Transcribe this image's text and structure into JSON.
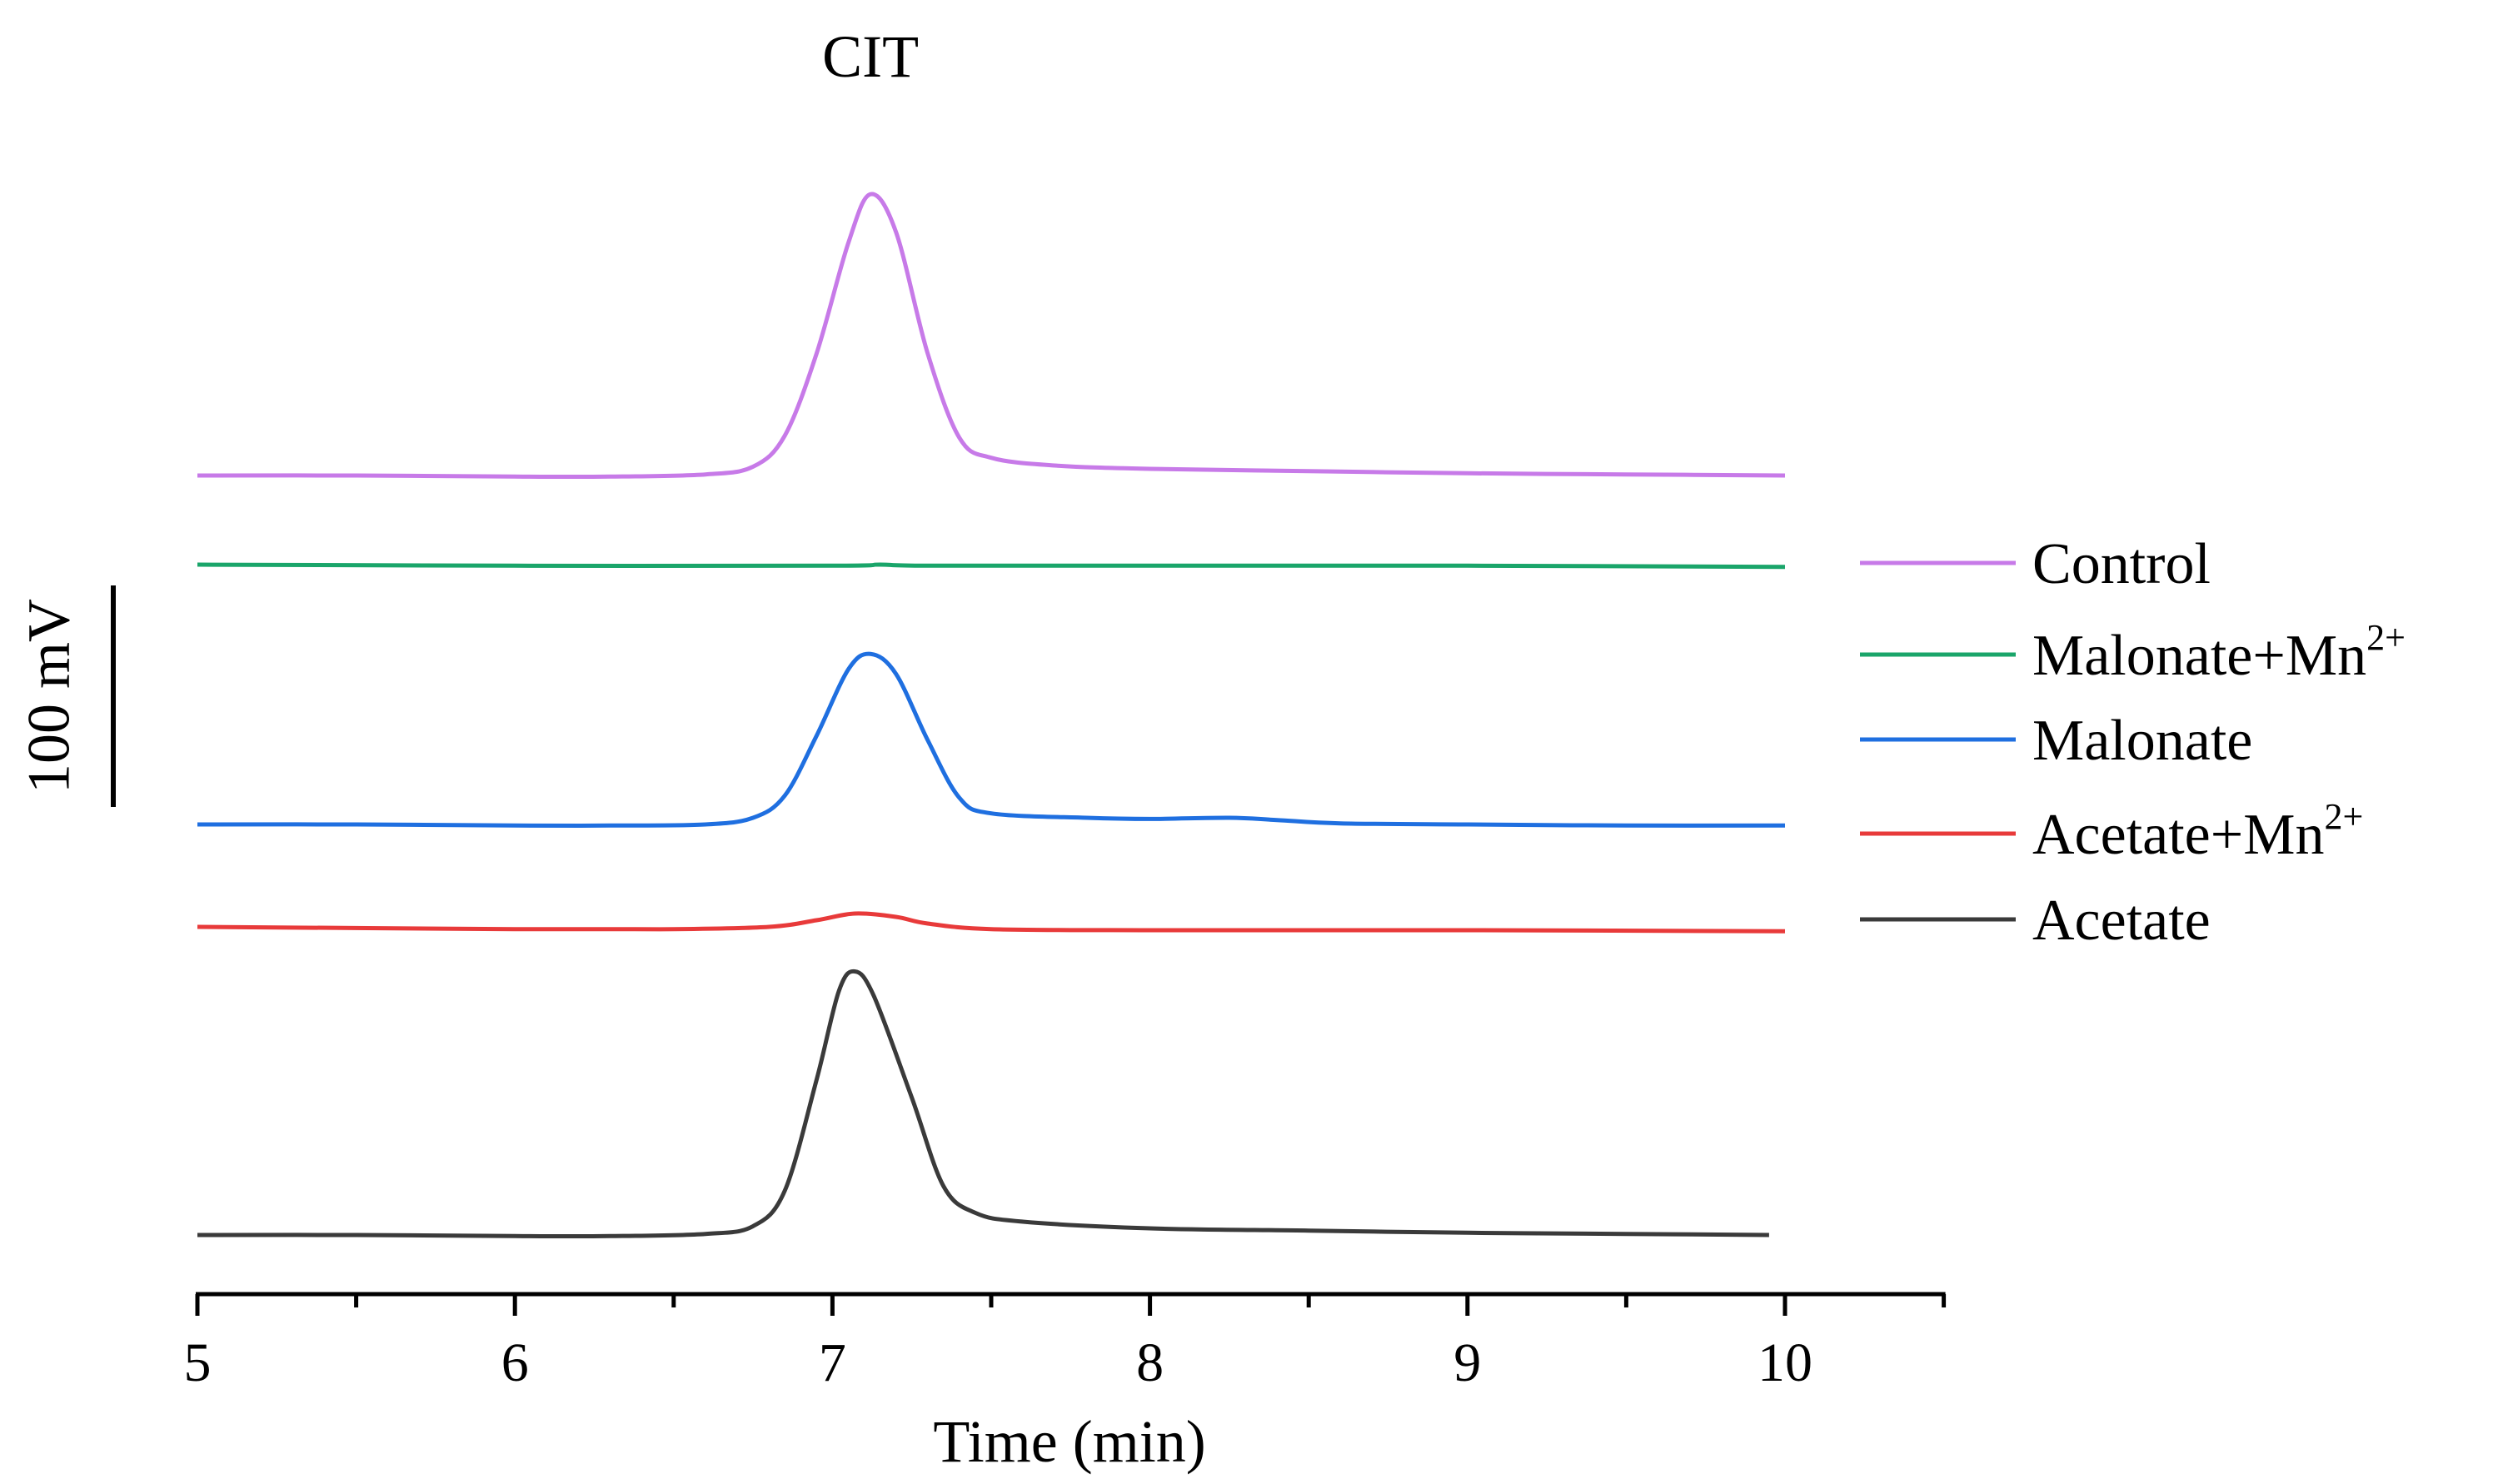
{
  "chart_data": {
    "type": "line",
    "title": "",
    "xlabel": "Time (min)",
    "ylabel": "",
    "xlim": [
      5,
      10.5
    ],
    "x_ticks": [
      5,
      6,
      7,
      8,
      9,
      10
    ],
    "x_tick_labels": [
      "5",
      "6",
      "7",
      "8",
      "9",
      "10"
    ],
    "x_minor_step": 0.5,
    "grid": false,
    "legend_position": "right",
    "annotations": [
      {
        "text": "CIT",
        "x": 7.12
      }
    ],
    "scale_bar": {
      "label": "100 mV",
      "value_mV": 100
    },
    "series": [
      {
        "name": "Control",
        "name_main": "Control",
        "name_sup": "",
        "color": "#c77ae8",
        "baseline_mV": 0,
        "points": [
          [
            5.0,
            0
          ],
          [
            5.5,
            0
          ],
          [
            6.0,
            -0.5
          ],
          [
            6.3,
            -0.5
          ],
          [
            6.6,
            0.5
          ],
          [
            6.75,
            4
          ],
          [
            6.85,
            18
          ],
          [
            6.95,
            55
          ],
          [
            7.05,
            105
          ],
          [
            7.12,
            127
          ],
          [
            7.2,
            110
          ],
          [
            7.3,
            55
          ],
          [
            7.4,
            17
          ],
          [
            7.5,
            8
          ],
          [
            7.7,
            4.5
          ],
          [
            8.0,
            3
          ],
          [
            8.5,
            2
          ],
          [
            9.0,
            1
          ],
          [
            9.5,
            0.5
          ],
          [
            10.0,
            0
          ]
        ]
      },
      {
        "name": "Malonate+Mn2+",
        "name_main": "Malonate+Mn",
        "name_sup": "2+",
        "color": "#1aa56a",
        "baseline_mV": 0,
        "points": [
          [
            5.0,
            0
          ],
          [
            6.0,
            -0.5
          ],
          [
            7.0,
            -0.5
          ],
          [
            7.15,
            0
          ],
          [
            7.3,
            -0.5
          ],
          [
            8.0,
            -0.5
          ],
          [
            9.0,
            -0.5
          ],
          [
            10.0,
            -1
          ]
        ]
      },
      {
        "name": "Malonate",
        "name_main": "Malonate",
        "name_sup": "",
        "color": "#1f6fe0",
        "baseline_mV": 0,
        "points": [
          [
            5.0,
            0
          ],
          [
            5.5,
            0
          ],
          [
            6.0,
            -0.5
          ],
          [
            6.3,
            -0.5
          ],
          [
            6.6,
            0
          ],
          [
            6.75,
            3
          ],
          [
            6.85,
            13
          ],
          [
            6.95,
            40
          ],
          [
            7.05,
            70
          ],
          [
            7.12,
            77
          ],
          [
            7.2,
            68
          ],
          [
            7.3,
            38
          ],
          [
            7.4,
            12
          ],
          [
            7.5,
            5
          ],
          [
            7.8,
            3
          ],
          [
            8.0,
            2.5
          ],
          [
            8.25,
            3
          ],
          [
            8.4,
            2
          ],
          [
            8.6,
            0.5
          ],
          [
            9.0,
            0
          ],
          [
            9.5,
            -0.5
          ],
          [
            10.0,
            -0.5
          ]
        ]
      },
      {
        "name": "Acetate+Mn2+",
        "name_main": "Acetate+Mn",
        "name_sup": "2+",
        "color": "#e83a3a",
        "baseline_mV": 0,
        "points": [
          [
            5.0,
            0
          ],
          [
            6.0,
            -1
          ],
          [
            6.5,
            -1
          ],
          [
            6.8,
            0
          ],
          [
            6.95,
            3
          ],
          [
            7.07,
            6
          ],
          [
            7.2,
            4.5
          ],
          [
            7.3,
            1.5
          ],
          [
            7.5,
            -1
          ],
          [
            8.0,
            -1.5
          ],
          [
            9.0,
            -1.5
          ],
          [
            10.0,
            -2
          ]
        ]
      },
      {
        "name": "Acetate",
        "name_main": "Acetate",
        "name_sup": "",
        "color": "#3a3a3a",
        "baseline_mV": 0,
        "points": [
          [
            5.0,
            0
          ],
          [
            5.5,
            0
          ],
          [
            6.0,
            -0.5
          ],
          [
            6.3,
            -0.5
          ],
          [
            6.6,
            0.5
          ],
          [
            6.75,
            4
          ],
          [
            6.85,
            20
          ],
          [
            6.95,
            70
          ],
          [
            7.02,
            110
          ],
          [
            7.07,
            119
          ],
          [
            7.13,
            108
          ],
          [
            7.25,
            62
          ],
          [
            7.35,
            22
          ],
          [
            7.45,
            10
          ],
          [
            7.6,
            6
          ],
          [
            8.0,
            3
          ],
          [
            8.5,
            2
          ],
          [
            9.0,
            1
          ],
          [
            9.5,
            0.5
          ],
          [
            9.95,
            0
          ]
        ]
      }
    ]
  }
}
